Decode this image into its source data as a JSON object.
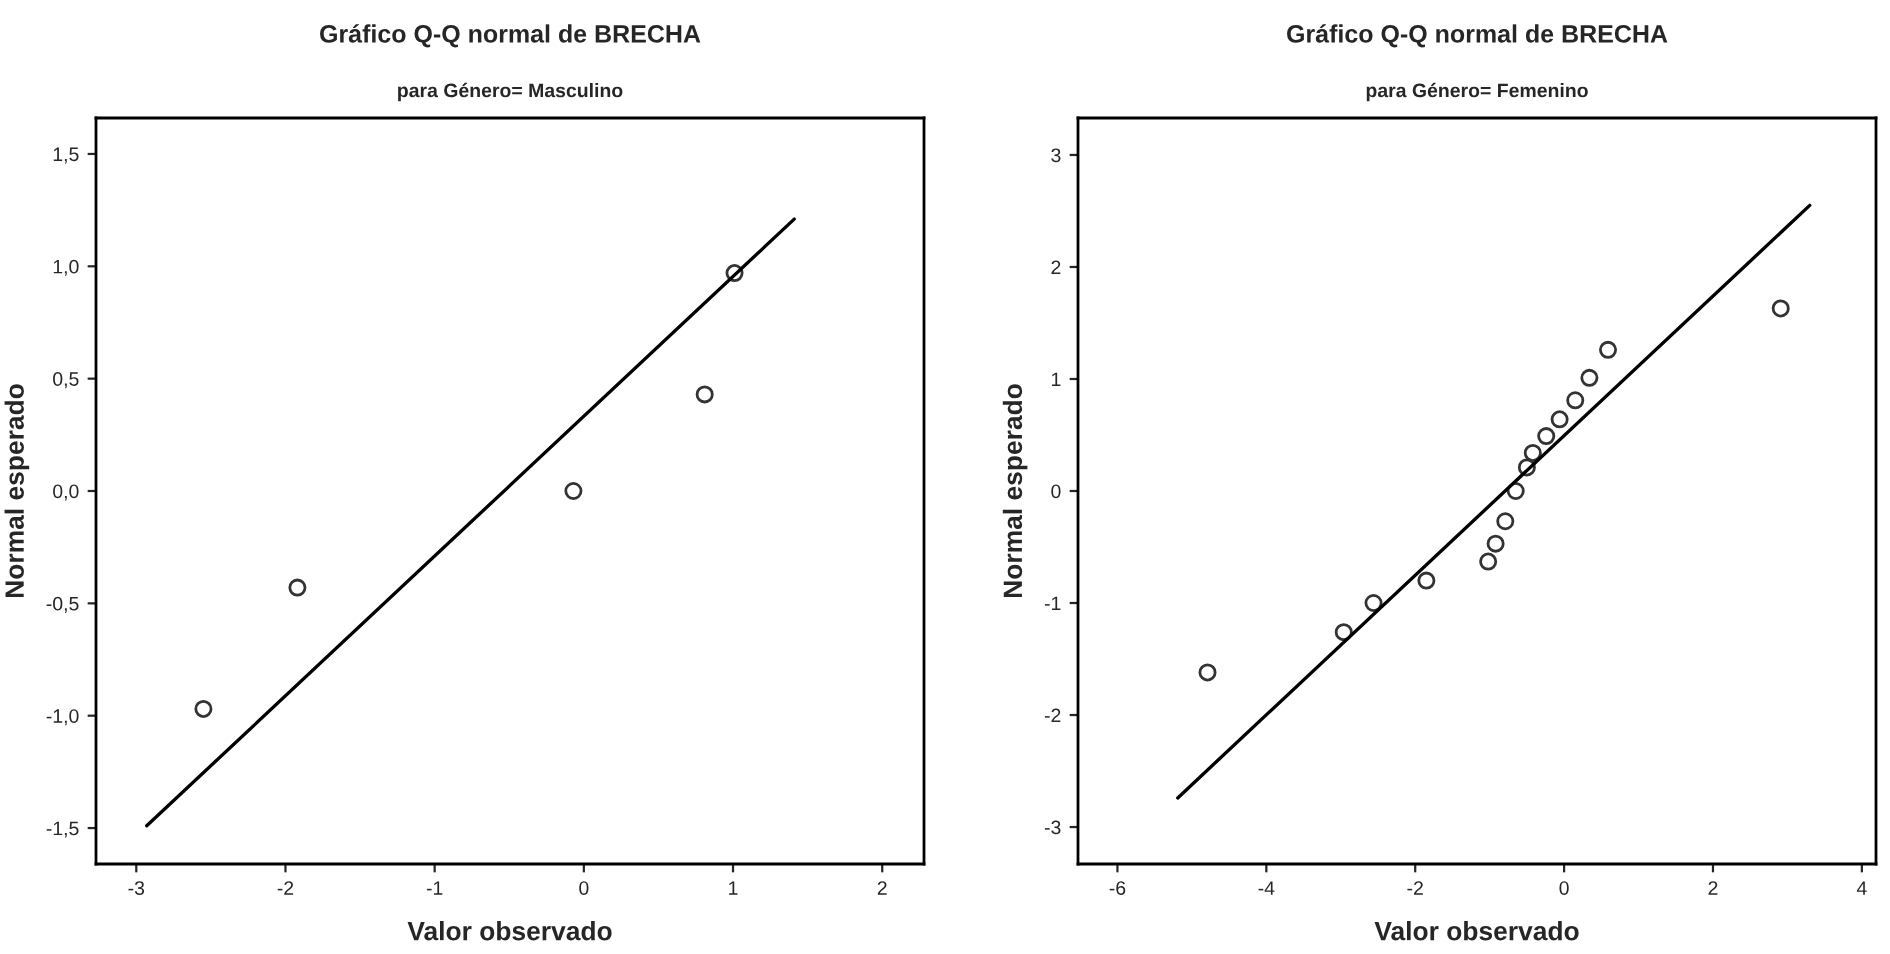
{
  "chart_data": [
    {
      "type": "scatter",
      "title": "Gráfico Q-Q normal de BRECHA",
      "subtitle": "para Género= Masculino",
      "xlabel": "Valor observado",
      "ylabel": "Normal esperado",
      "grid": false,
      "xlim": [
        -3.27,
        2.28
      ],
      "xticks": [
        -3,
        -2,
        -1,
        0,
        1,
        2
      ],
      "ylim": [
        -1.66,
        1.66
      ],
      "yticks": [
        {
          "value": -1.5,
          "label": "-1,5"
        },
        {
          "value": -1.0,
          "label": "-1,0"
        },
        {
          "value": -0.5,
          "label": "-0,5"
        },
        {
          "value": 0.0,
          "label": "0,0"
        },
        {
          "value": 0.5,
          "label": "0,5"
        },
        {
          "value": 1.0,
          "label": "1,0"
        },
        {
          "value": 1.5,
          "label": "1,5"
        }
      ],
      "series": [
        {
          "color": "#333333",
          "marker": "circle",
          "x": [
            -2.55,
            -1.92,
            -0.07,
            0.81,
            1.01
          ],
          "values": [
            -0.97,
            -0.43,
            0.0,
            0.43,
            0.97
          ]
        },
        {
          "type": "line",
          "color": "#000000",
          "x": [
            -2.93,
            1.41
          ],
          "values": [
            -1.49,
            1.21
          ]
        }
      ]
    },
    {
      "type": "scatter",
      "title": "Gráfico Q-Q normal de BRECHA",
      "subtitle": "para Género= Femenino",
      "xlabel": "Valor observado",
      "ylabel": "Normal esperado",
      "grid": false,
      "xlim": [
        -6.53,
        4.19
      ],
      "xticks": [
        -6,
        -4,
        -2,
        0,
        2,
        4
      ],
      "ylim": [
        -3.33,
        3.33
      ],
      "yticks": [
        -3,
        -2,
        -1,
        0,
        1,
        2,
        3
      ],
      "series": [
        {
          "color": "#333333",
          "marker": "circle",
          "x": [
            -4.79,
            -2.96,
            -2.56,
            -1.85,
            -1.02,
            -0.92,
            -0.79,
            -0.65,
            -0.5,
            -0.42,
            -0.24,
            -0.06,
            0.15,
            0.34,
            0.59,
            2.91
          ],
          "values": [
            -1.62,
            -1.26,
            -1.0,
            -0.8,
            -0.63,
            -0.47,
            -0.27,
            0.0,
            0.21,
            0.34,
            0.49,
            0.64,
            0.81,
            1.01,
            1.26,
            1.63
          ]
        },
        {
          "type": "line",
          "color": "#000000",
          "x": [
            -5.19,
            3.3
          ],
          "values": [
            -2.74,
            2.55
          ]
        }
      ]
    }
  ]
}
